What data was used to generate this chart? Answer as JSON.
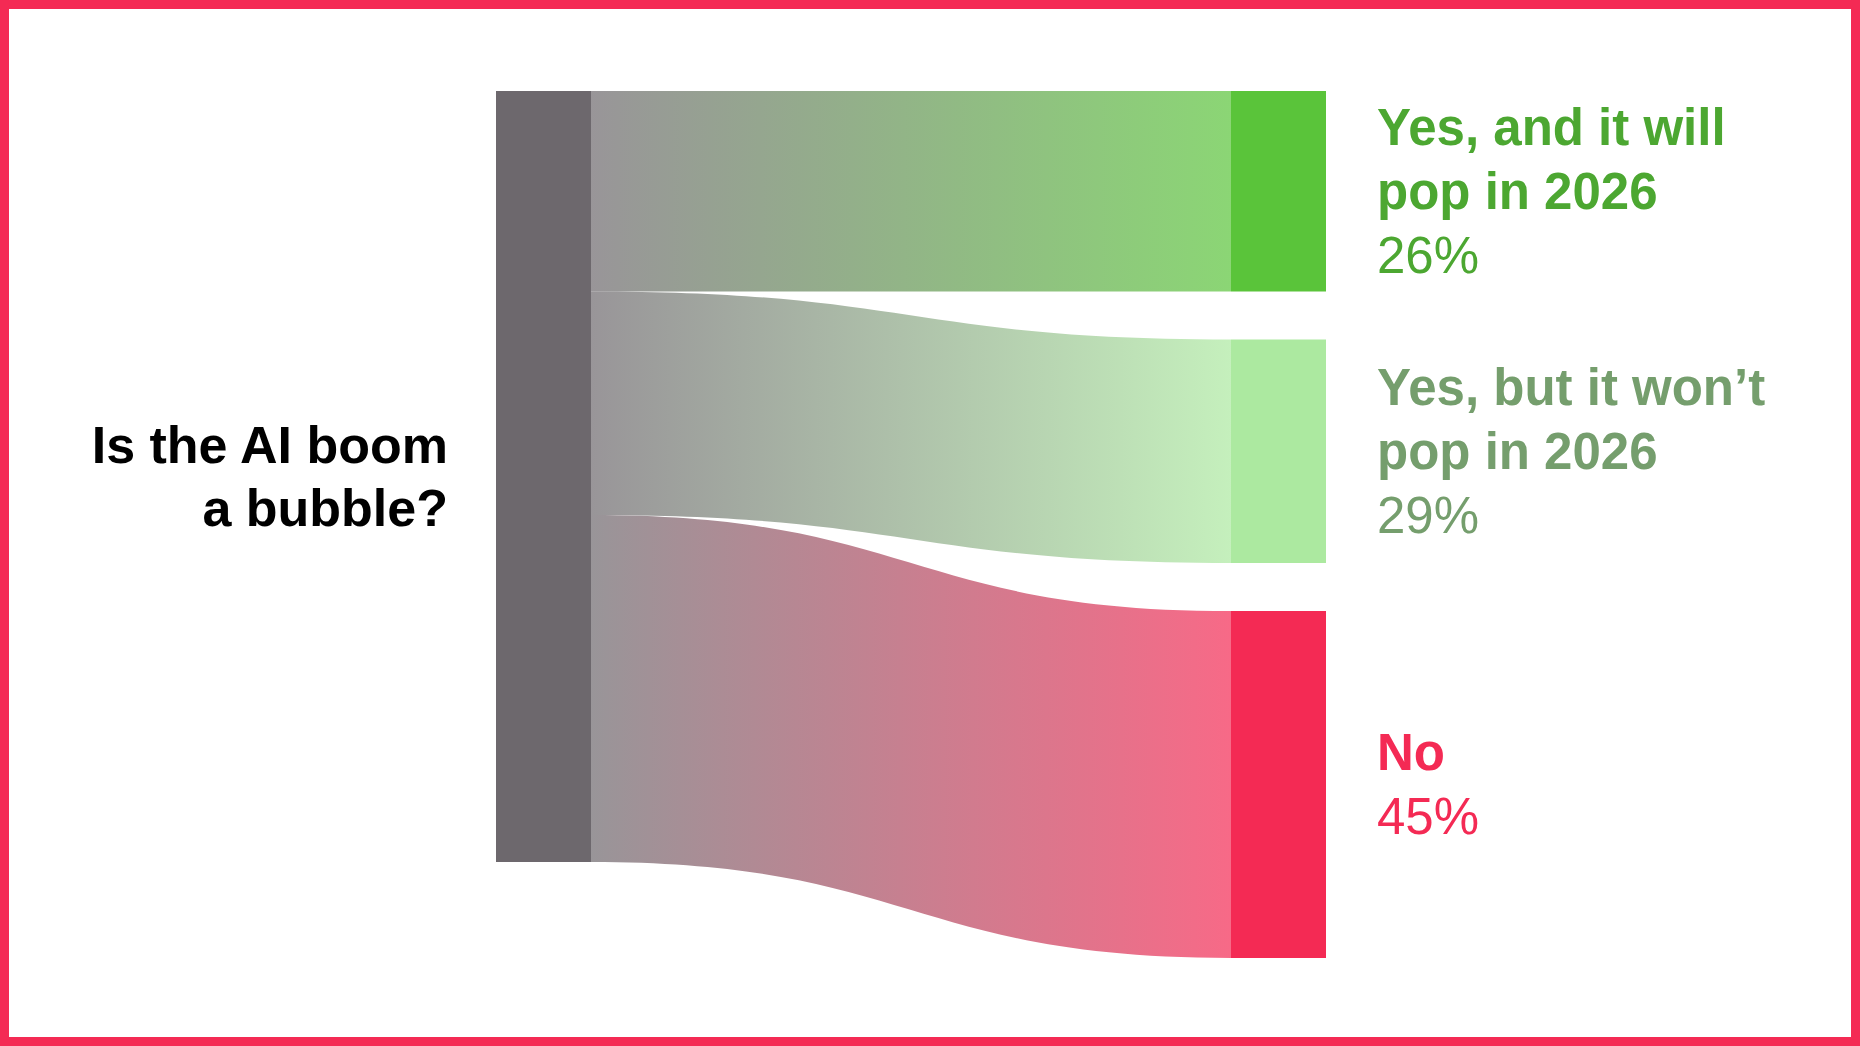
{
  "chart_data": {
    "type": "other",
    "title": "Is the AI boom a bubble?",
    "color": "#6d686d",
    "categories": [
      "Yes, and it will pop in 2026",
      "Yes, but it won’t pop in 2026",
      "No"
    ],
    "values": [
      26,
      29,
      45
    ],
    "value_labels": [
      "26%",
      "29%",
      "45%"
    ],
    "colors": [
      "#5ac43a",
      "#ace9a0",
      "#f42a54"
    ]
  }
}
